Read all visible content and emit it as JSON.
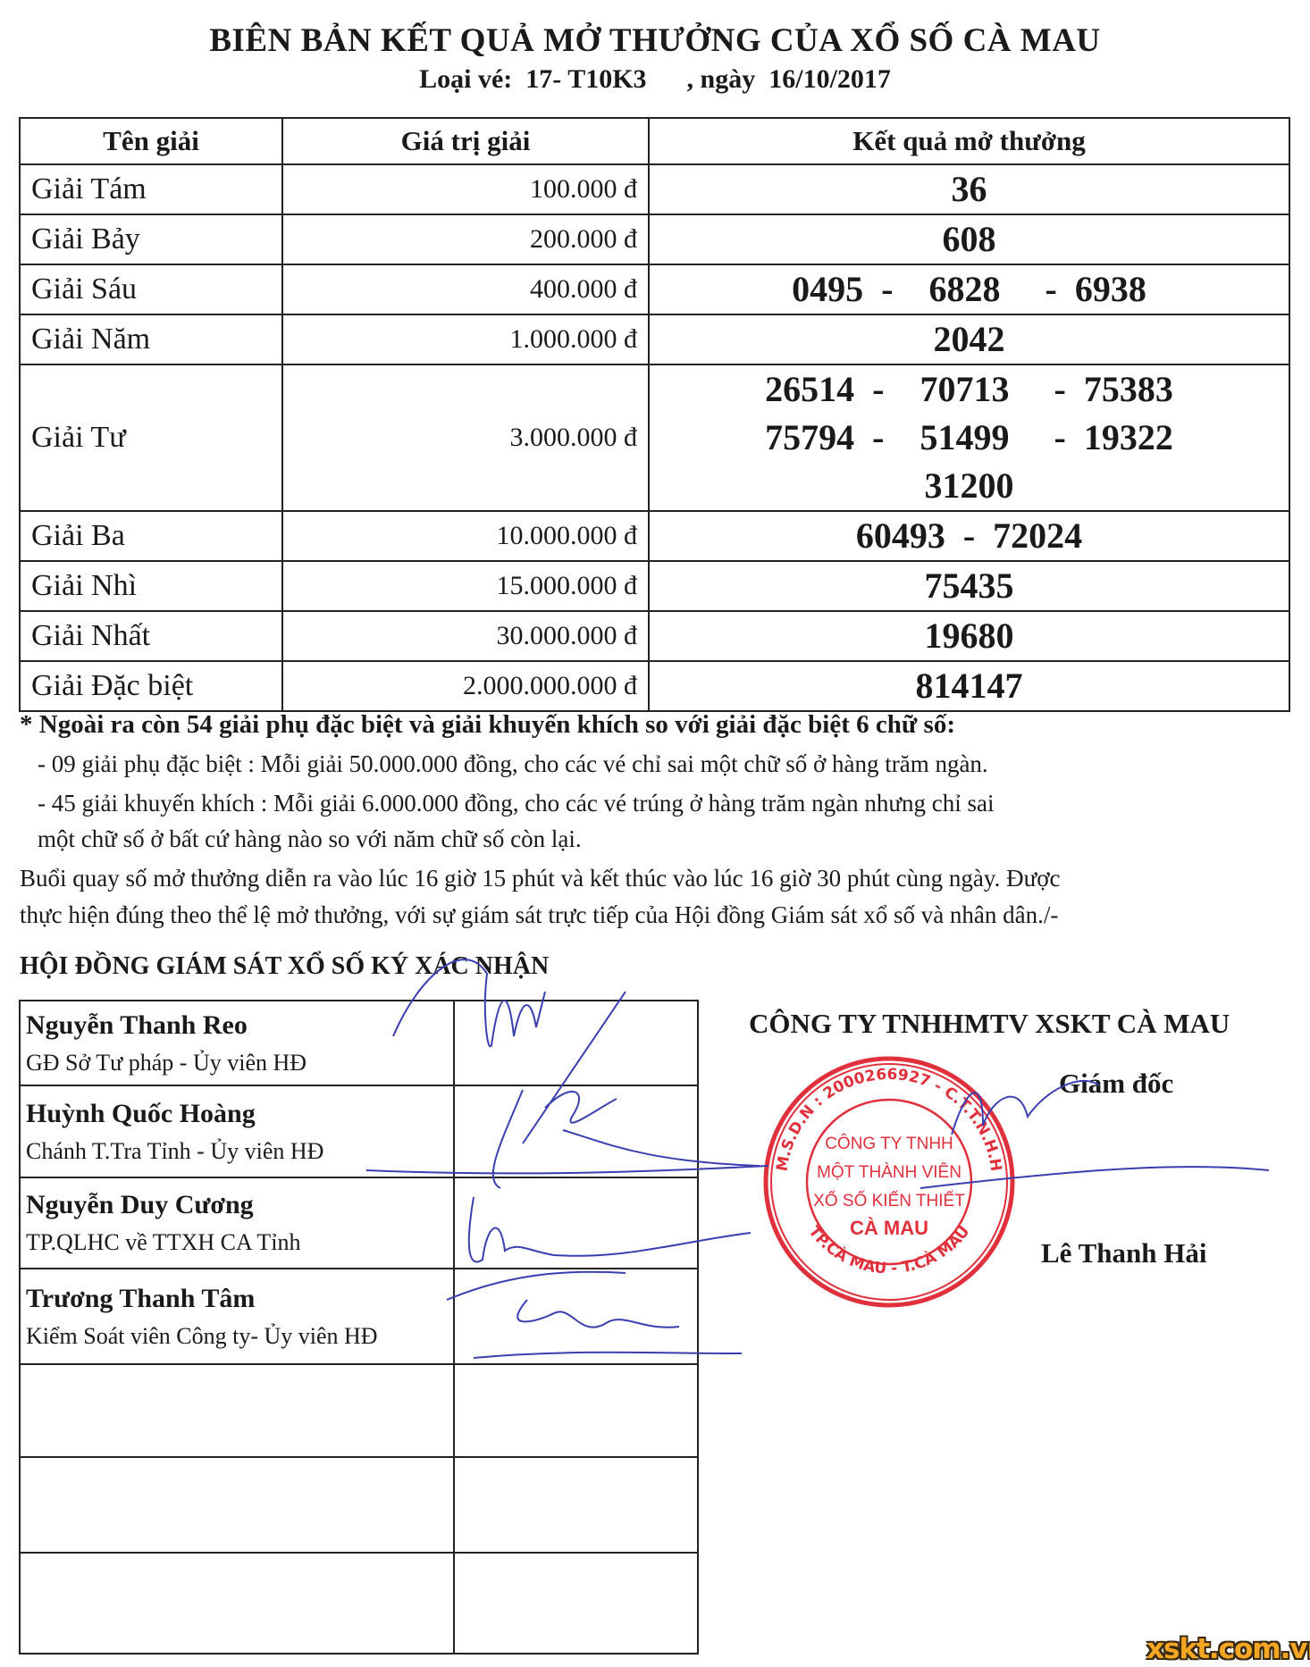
{
  "header": {
    "title": "BIÊN BẢN KẾT QUẢ MỞ THƯỞNG CỦA XỔ SỐ CÀ MAU",
    "ticket_label": "Loại vé:",
    "ticket_code": "17- T10K3",
    "date_label": ", ngày",
    "date": "16/10/2017"
  },
  "results_table": {
    "columns": [
      "Tên giải",
      "Giá trị giải",
      "Kết quả mở thưởng"
    ],
    "rows": [
      {
        "name": "Giải Tám",
        "value": "100.000 đ",
        "results": [
          "36"
        ]
      },
      {
        "name": "Giải Bảy",
        "value": "200.000 đ",
        "results": [
          "608"
        ]
      },
      {
        "name": "Giải Sáu",
        "value": "400.000 đ",
        "results": [
          "0495  -    6828     -  6938"
        ]
      },
      {
        "name": "Giải Năm",
        "value": "1.000.000 đ",
        "results": [
          "2042"
        ]
      },
      {
        "name": "Giải Tư",
        "value": "3.000.000 đ",
        "results": [
          "26514  -    70713     -  75383",
          "75794  -    51499     -  19322",
          "31200"
        ]
      },
      {
        "name": "Giải Ba",
        "value": "10.000.000 đ",
        "results": [
          "60493  -  72024"
        ]
      },
      {
        "name": "Giải Nhì",
        "value": "15.000.000 đ",
        "results": [
          "75435"
        ]
      },
      {
        "name": "Giải Nhất",
        "value": "30.000.000 đ",
        "results": [
          "19680"
        ]
      },
      {
        "name": "Giải Đặc biệt",
        "value": "2.000.000.000 đ",
        "results": [
          "814147"
        ]
      }
    ]
  },
  "notes": {
    "heading": "* Ngoài ra còn 54 giải phụ đặc biệt và giải khuyến khích so với giải đặc biệt 6 chữ số:",
    "lines": [
      "- 09 giải phụ đặc biệt : Mỗi giải 50.000.000 đồng, cho các vé chỉ sai một chữ số ở hàng trăm ngàn.",
      "- 45 giải khuyến khích : Mỗi giải 6.000.000 đồng, cho các vé trúng ở hàng trăm ngàn nhưng chỉ sai",
      "một chữ số ở bất cứ hàng nào so với năm chữ số còn lại.",
      "Buổi quay số mở thưởng diễn ra vào lúc 16 giờ 15 phút và kết thúc vào lúc 16 giờ 30 phút cùng ngày. Được",
      "thực hiện đúng theo thể lệ mở thưởng, với sự giám sát trực tiếp của Hội đồng Giám sát xổ số và nhân dân./-"
    ]
  },
  "council": {
    "title": "HỘI ĐỒNG GIÁM SÁT XỔ SỐ KÝ XÁC NHẬN",
    "members": [
      {
        "name": "Nguyễn Thanh Reo",
        "role": "GĐ Sở Tư pháp - Ủy viên HĐ"
      },
      {
        "name": "Huỳnh Quốc Hoàng",
        "role": "Chánh T.Tra Tỉnh - Ủy viên HĐ"
      },
      {
        "name": "Nguyễn Duy Cương",
        "role": "TP.QLHC về TTXH CA Tỉnh"
      },
      {
        "name": "Trương Thanh Tâm",
        "role": "Kiểm Soát viên Công ty- Ủy viên HĐ"
      },
      {
        "name": "",
        "role": ""
      },
      {
        "name": "",
        "role": ""
      },
      {
        "name": "",
        "role": ""
      }
    ]
  },
  "company": {
    "name": "CÔNG TY TNHHMTV XSKT CÀ MAU",
    "director_title": "Giám đốc",
    "director_name": "Lê Thanh Hải",
    "stamp_text": [
      "CÔNG TY TNHH",
      "MỘT THÀNH VIÊN",
      "XỔ SỐ KIẾN THIẾT",
      "CÀ MAU",
      "M.S.D.N : 2000266927 - C.T.T.N.H.H",
      "TP.CÀ MAU - T.CÀ MAU"
    ],
    "stamp_color": "#e0303c",
    "ink_color": "#3a3fb0"
  },
  "watermark": "xskt.com.vn",
  "watermark_color": "#f5a623"
}
